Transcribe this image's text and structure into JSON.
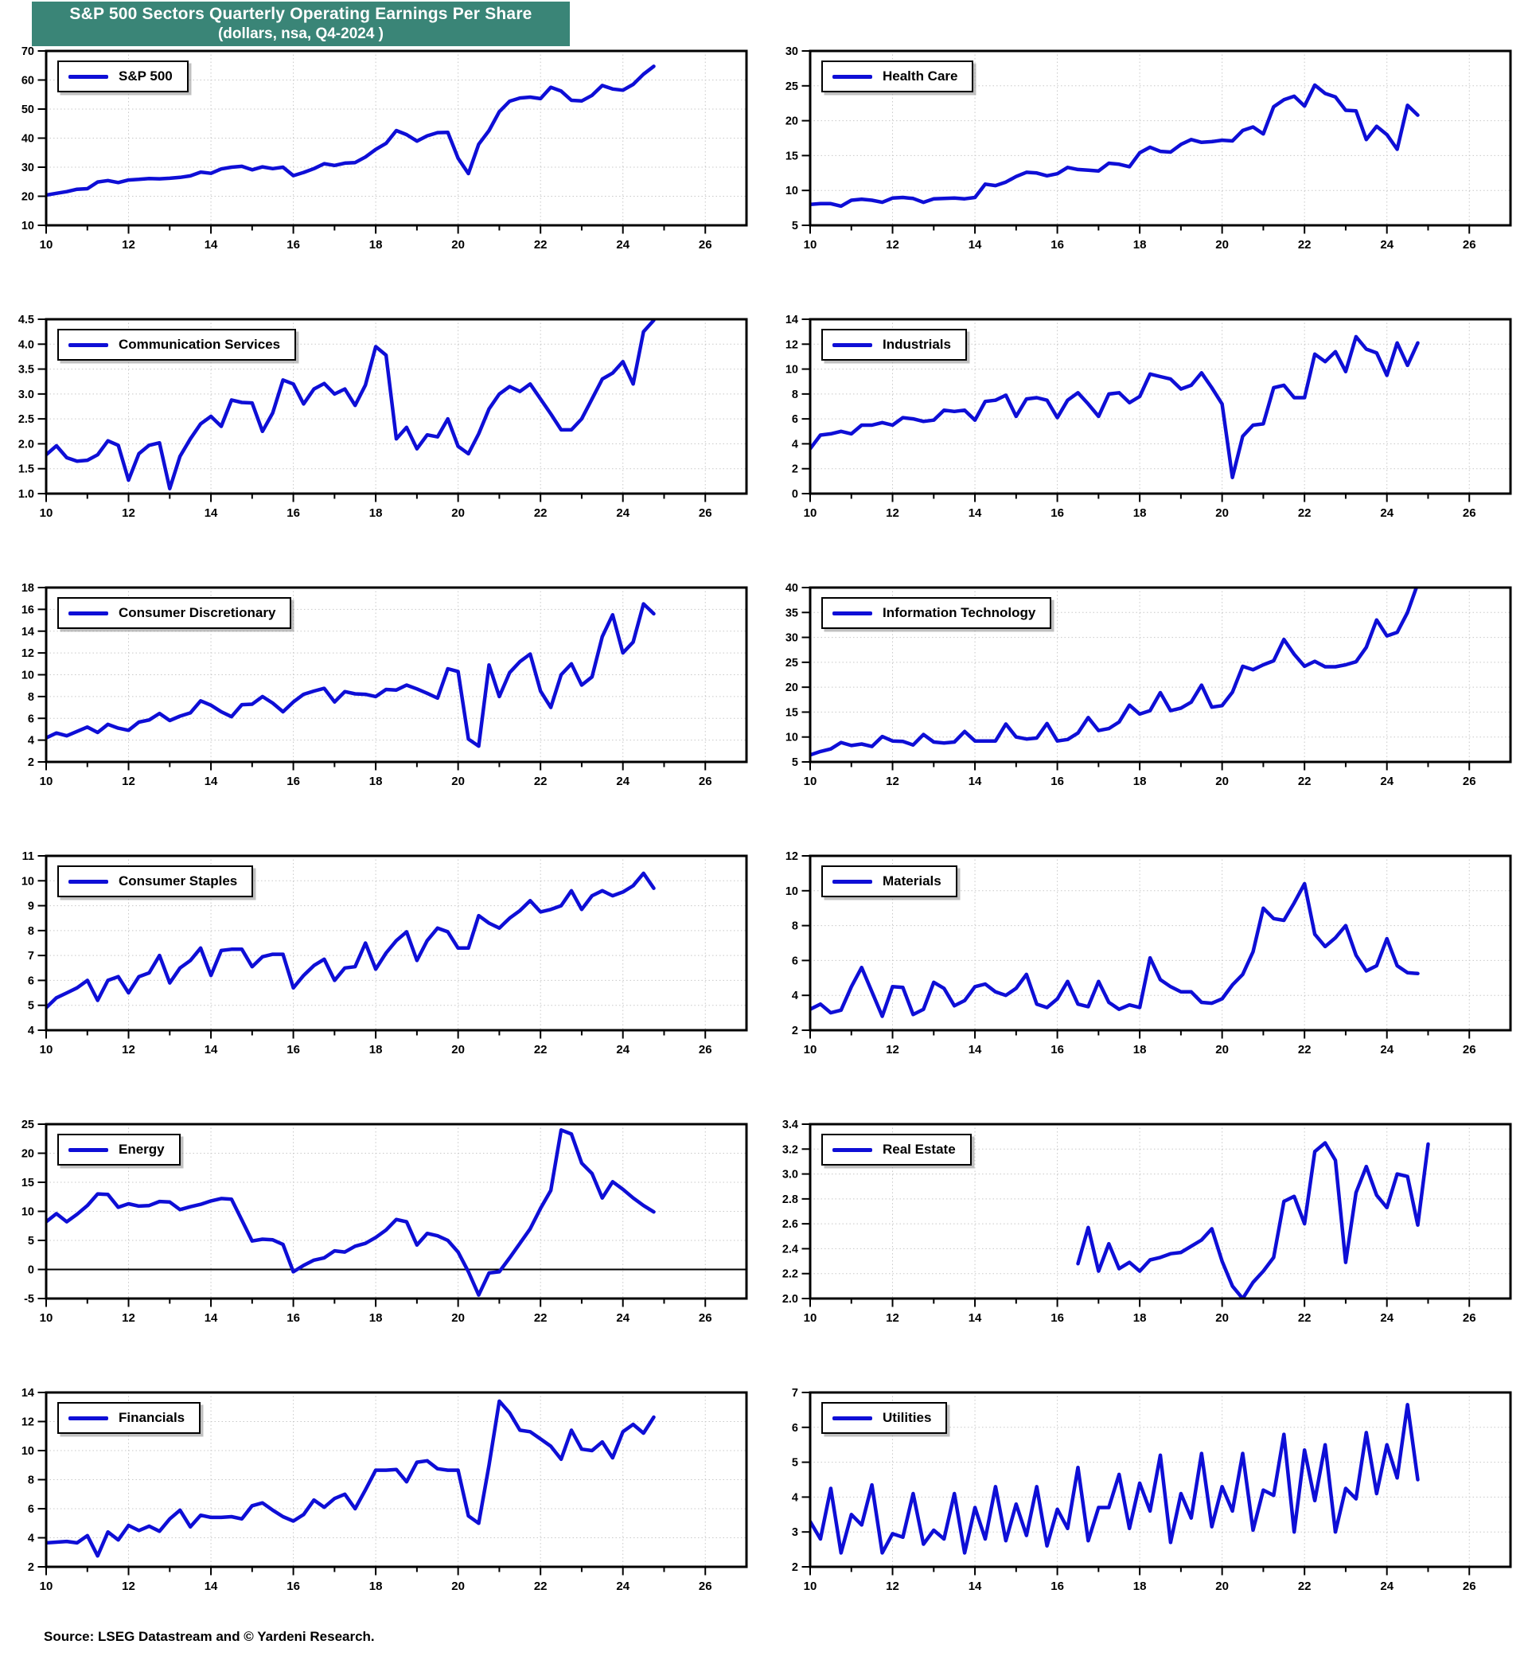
{
  "header": {
    "title_line1": "S&P 500 Sectors Quarterly Operating Earnings Per Share",
    "title_line2": "(dollars, nsa, Q4-2024 )",
    "banner_color": "#3a8577"
  },
  "footer": {
    "source": "Source: LSEG Datastream and © Yardeni Research."
  },
  "colors": {
    "line": "#0e0ed6",
    "grid": "#c8c8c8",
    "frame": "#000000",
    "tick": "#000000"
  },
  "axis": {
    "x_min": 10,
    "x_max": 27,
    "x_major_ticks": [
      10,
      12,
      14,
      16,
      18,
      20,
      22,
      24,
      26
    ],
    "x_minor_step": 1
  },
  "chart_data": [
    {
      "type": "line",
      "name": "S&P 500",
      "slug": "sp500",
      "ylim": [
        10,
        70
      ],
      "yticks": [
        10,
        20,
        30,
        40,
        50,
        60,
        70
      ],
      "ydigits": 0,
      "x_start": 10,
      "x_step": 0.25,
      "zero_line": false,
      "values": [
        20.4,
        21.0,
        21.6,
        22.4,
        22.6,
        24.9,
        25.4,
        24.7,
        25.6,
        25.8,
        26.1,
        26.0,
        26.2,
        26.5,
        27.0,
        28.3,
        27.9,
        29.4,
        30.0,
        30.3,
        29.1,
        30.1,
        29.5,
        30.0,
        27.1,
        28.2,
        29.5,
        31.2,
        30.6,
        31.4,
        31.6,
        33.5,
        36.1,
        38.2,
        42.6,
        41.2,
        39.0,
        40.8,
        41.9,
        42.0,
        33.1,
        27.8,
        37.9,
        42.6,
        49.1,
        52.7,
        53.8,
        54.1,
        53.6,
        57.5,
        56.2,
        53.0,
        52.8,
        54.7,
        58.1,
        56.9,
        56.5,
        58.5,
        62.0,
        64.7
      ]
    },
    {
      "type": "line",
      "name": "Health Care",
      "slug": "health-care",
      "ylim": [
        5,
        30
      ],
      "yticks": [
        5,
        10,
        15,
        20,
        25,
        30
      ],
      "ydigits": 0,
      "x_start": 10,
      "x_step": 0.25,
      "zero_line": false,
      "values": [
        8.0,
        8.1,
        8.1,
        7.75,
        8.6,
        8.75,
        8.6,
        8.3,
        8.9,
        9.0,
        8.85,
        8.3,
        8.8,
        8.85,
        8.9,
        8.8,
        9.0,
        10.9,
        10.7,
        11.2,
        12.0,
        12.6,
        12.5,
        12.1,
        12.4,
        13.3,
        13.0,
        12.9,
        12.8,
        13.9,
        13.75,
        13.4,
        15.4,
        16.2,
        15.6,
        15.5,
        16.6,
        17.3,
        16.9,
        17.0,
        17.2,
        17.1,
        18.6,
        19.1,
        18.1,
        22.0,
        23.0,
        23.5,
        22.1,
        25.1,
        23.9,
        23.4,
        21.5,
        21.4,
        17.3,
        19.2,
        18.0,
        15.9,
        22.2,
        20.8
      ]
    },
    {
      "type": "line",
      "name": "Communication Services",
      "slug": "communication-services",
      "ylim": [
        1.0,
        4.5
      ],
      "yticks": [
        1.0,
        1.5,
        2.0,
        2.5,
        3.0,
        3.5,
        4.0,
        4.5
      ],
      "ydigits": 1,
      "x_start": 10,
      "x_step": 0.25,
      "zero_line": false,
      "values": [
        1.78,
        1.96,
        1.72,
        1.65,
        1.67,
        1.78,
        2.06,
        1.97,
        1.27,
        1.8,
        1.97,
        2.02,
        1.1,
        1.75,
        2.1,
        2.4,
        2.55,
        2.35,
        2.88,
        2.83,
        2.82,
        2.25,
        2.62,
        3.28,
        3.2,
        2.8,
        3.1,
        3.21,
        3.0,
        3.1,
        2.77,
        3.18,
        3.95,
        3.78,
        2.1,
        2.33,
        1.9,
        2.18,
        2.14,
        2.5,
        1.95,
        1.8,
        2.2,
        2.7,
        3.0,
        3.15,
        3.05,
        3.2,
        2.9,
        2.6,
        2.28,
        2.28,
        2.5,
        2.9,
        3.3,
        3.42,
        3.65,
        3.2,
        4.25,
        4.48
      ]
    },
    {
      "type": "line",
      "name": "Industrials",
      "slug": "industrials",
      "ylim": [
        0,
        14
      ],
      "yticks": [
        0,
        2,
        4,
        6,
        8,
        10,
        12,
        14
      ],
      "ydigits": 0,
      "x_start": 10,
      "x_step": 0.25,
      "zero_line": false,
      "values": [
        3.6,
        4.7,
        4.8,
        5.0,
        4.8,
        5.5,
        5.5,
        5.7,
        5.5,
        6.1,
        6.0,
        5.8,
        5.9,
        6.7,
        6.6,
        6.7,
        5.9,
        7.4,
        7.5,
        7.9,
        6.2,
        7.6,
        7.7,
        7.5,
        6.1,
        7.5,
        8.1,
        7.2,
        6.2,
        8.0,
        8.1,
        7.3,
        7.8,
        9.6,
        9.4,
        9.2,
        8.4,
        8.7,
        9.7,
        8.5,
        7.2,
        1.3,
        4.6,
        5.5,
        5.6,
        8.5,
        8.7,
        7.7,
        7.7,
        11.2,
        10.6,
        11.4,
        9.8,
        12.6,
        11.6,
        11.3,
        9.5,
        12.1,
        10.3,
        12.1
      ]
    },
    {
      "type": "line",
      "name": "Consumer Discretionary",
      "slug": "consumer-discretionary",
      "ylim": [
        2,
        18
      ],
      "yticks": [
        2,
        4,
        6,
        8,
        10,
        12,
        14,
        16,
        18
      ],
      "ydigits": 0,
      "x_start": 10,
      "x_step": 0.25,
      "zero_line": false,
      "values": [
        4.2,
        4.65,
        4.4,
        4.8,
        5.2,
        4.7,
        5.45,
        5.1,
        4.9,
        5.65,
        5.85,
        6.45,
        5.8,
        6.2,
        6.5,
        7.6,
        7.2,
        6.6,
        6.15,
        7.25,
        7.3,
        8.0,
        7.4,
        6.6,
        7.5,
        8.2,
        8.5,
        8.75,
        7.5,
        8.45,
        8.25,
        8.2,
        8.0,
        8.65,
        8.6,
        9.05,
        8.7,
        8.3,
        7.85,
        10.55,
        10.3,
        4.1,
        3.45,
        10.9,
        8.0,
        10.2,
        11.2,
        11.9,
        8.5,
        7.0,
        10.0,
        11.0,
        9.05,
        9.8,
        13.5,
        15.5,
        12.0,
        13.0,
        16.5,
        15.6
      ]
    },
    {
      "type": "line",
      "name": "Information Technology",
      "slug": "information-technology",
      "ylim": [
        5,
        40
      ],
      "yticks": [
        5,
        10,
        15,
        20,
        25,
        30,
        35,
        40
      ],
      "ydigits": 0,
      "x_start": 10,
      "x_step": 0.25,
      "zero_line": false,
      "values": [
        6.4,
        7.1,
        7.6,
        8.9,
        8.3,
        8.6,
        8.1,
        10.1,
        9.2,
        9.1,
        8.4,
        10.5,
        9.0,
        8.8,
        9.0,
        11.1,
        9.2,
        9.2,
        9.2,
        12.6,
        10.0,
        9.6,
        9.8,
        12.7,
        9.2,
        9.5,
        10.8,
        13.9,
        11.3,
        11.7,
        13.0,
        16.4,
        14.6,
        15.3,
        18.9,
        15.3,
        15.8,
        17.0,
        20.4,
        16.0,
        16.3,
        19.0,
        24.2,
        23.5,
        24.5,
        25.3,
        29.6,
        26.6,
        24.2,
        25.2,
        24.1,
        24.1,
        24.5,
        25.1,
        28.0,
        33.5,
        30.3,
        31.0,
        35.0,
        40.8
      ]
    },
    {
      "type": "line",
      "name": "Consumer Staples",
      "slug": "consumer-staples",
      "ylim": [
        4,
        11
      ],
      "yticks": [
        4,
        5,
        6,
        7,
        8,
        9,
        10,
        11
      ],
      "ydigits": 0,
      "x_start": 10,
      "x_step": 0.25,
      "zero_line": false,
      "values": [
        4.9,
        5.3,
        5.5,
        5.7,
        6.0,
        5.2,
        6.0,
        6.15,
        5.5,
        6.15,
        6.3,
        7.0,
        5.9,
        6.5,
        6.8,
        7.3,
        6.2,
        7.2,
        7.25,
        7.25,
        6.55,
        6.95,
        7.05,
        7.05,
        5.7,
        6.2,
        6.6,
        6.85,
        6.0,
        6.5,
        6.55,
        7.5,
        6.45,
        7.1,
        7.6,
        7.95,
        6.8,
        7.6,
        8.1,
        7.95,
        7.3,
        7.3,
        8.6,
        8.3,
        8.1,
        8.5,
        8.8,
        9.2,
        8.75,
        8.85,
        9.0,
        9.6,
        8.85,
        9.4,
        9.6,
        9.4,
        9.55,
        9.8,
        10.3,
        9.7
      ]
    },
    {
      "type": "line",
      "name": "Materials",
      "slug": "materials",
      "ylim": [
        2,
        12
      ],
      "yticks": [
        2,
        4,
        6,
        8,
        10,
        12
      ],
      "ydigits": 0,
      "x_start": 10,
      "x_step": 0.25,
      "zero_line": false,
      "values": [
        3.2,
        3.5,
        3.0,
        3.15,
        4.5,
        5.6,
        4.2,
        2.8,
        4.5,
        4.45,
        2.9,
        3.2,
        4.75,
        4.4,
        3.4,
        3.7,
        4.5,
        4.65,
        4.2,
        4.0,
        4.4,
        5.2,
        3.5,
        3.3,
        3.8,
        4.8,
        3.5,
        3.35,
        4.8,
        3.6,
        3.2,
        3.45,
        3.3,
        6.15,
        4.9,
        4.5,
        4.2,
        4.2,
        3.6,
        3.55,
        3.8,
        4.6,
        5.2,
        6.5,
        9.0,
        8.4,
        8.3,
        9.3,
        10.4,
        7.5,
        6.8,
        7.3,
        8.0,
        6.3,
        5.4,
        5.7,
        7.25,
        5.7,
        5.3,
        5.25
      ]
    },
    {
      "type": "line",
      "name": "Energy",
      "slug": "energy",
      "ylim": [
        -5,
        25
      ],
      "yticks": [
        -5,
        0,
        5,
        10,
        15,
        20,
        25
      ],
      "ydigits": 0,
      "x_start": 10,
      "x_step": 0.25,
      "zero_line": true,
      "values": [
        8.2,
        9.6,
        8.2,
        9.5,
        11.0,
        13.0,
        12.9,
        10.7,
        11.3,
        10.9,
        11.0,
        11.7,
        11.6,
        10.3,
        10.8,
        11.2,
        11.8,
        12.2,
        12.1,
        8.5,
        4.9,
        5.2,
        5.1,
        4.3,
        -0.4,
        0.7,
        1.6,
        2.0,
        3.2,
        3.0,
        4.0,
        4.5,
        5.5,
        6.8,
        8.6,
        8.2,
        4.2,
        6.2,
        5.8,
        5.0,
        3.0,
        -0.4,
        -4.4,
        -0.6,
        -0.4,
        2.0,
        4.5,
        7.0,
        10.5,
        13.6,
        24.0,
        23.3,
        18.3,
        16.5,
        12.3,
        15.1,
        13.8,
        12.3,
        11.0,
        9.9
      ]
    },
    {
      "type": "line",
      "name": "Real Estate",
      "slug": "real-estate",
      "ylim": [
        2.0,
        3.4
      ],
      "yticks": [
        2.0,
        2.2,
        2.4,
        2.6,
        2.8,
        3.0,
        3.2,
        3.4
      ],
      "ydigits": 1,
      "x_start": 16.5,
      "x_step": 0.25,
      "zero_line": false,
      "values": [
        2.28,
        2.57,
        2.22,
        2.44,
        2.24,
        2.29,
        2.22,
        2.31,
        2.33,
        2.36,
        2.37,
        2.42,
        2.47,
        2.56,
        2.3,
        2.1,
        2.0,
        2.13,
        2.22,
        2.33,
        2.78,
        2.82,
        2.6,
        3.18,
        3.25,
        3.11,
        2.29,
        2.85,
        3.06,
        2.83,
        2.73,
        3.0,
        2.98,
        2.59,
        3.24
      ]
    },
    {
      "type": "line",
      "name": "Financials",
      "slug": "financials",
      "ylim": [
        2,
        14
      ],
      "yticks": [
        2,
        4,
        6,
        8,
        10,
        12,
        14
      ],
      "ydigits": 0,
      "x_start": 10,
      "x_step": 0.25,
      "zero_line": false,
      "values": [
        3.65,
        3.7,
        3.75,
        3.65,
        4.15,
        2.75,
        4.4,
        3.85,
        4.85,
        4.5,
        4.8,
        4.45,
        5.3,
        5.9,
        4.75,
        5.55,
        5.4,
        5.4,
        5.45,
        5.3,
        6.2,
        6.4,
        5.9,
        5.45,
        5.15,
        5.6,
        6.6,
        6.1,
        6.7,
        7.0,
        6.0,
        7.3,
        8.65,
        8.65,
        8.7,
        7.85,
        9.2,
        9.3,
        8.75,
        8.65,
        8.65,
        5.5,
        5.0,
        9.0,
        13.4,
        12.6,
        11.4,
        11.3,
        10.8,
        10.3,
        9.4,
        11.4,
        10.1,
        10.0,
        10.6,
        9.5,
        11.3,
        11.8,
        11.2,
        12.3
      ]
    },
    {
      "type": "line",
      "name": "Utilities",
      "slug": "utilities",
      "ylim": [
        2,
        7
      ],
      "yticks": [
        2,
        3,
        4,
        5,
        6,
        7
      ],
      "ydigits": 0,
      "x_start": 10,
      "x_step": 0.25,
      "zero_line": false,
      "values": [
        3.3,
        2.8,
        4.25,
        2.4,
        3.5,
        3.2,
        4.35,
        2.4,
        2.95,
        2.85,
        4.1,
        2.65,
        3.05,
        2.8,
        4.1,
        2.4,
        3.7,
        2.8,
        4.3,
        2.75,
        3.8,
        2.9,
        4.3,
        2.6,
        3.65,
        3.1,
        4.85,
        2.75,
        3.7,
        3.7,
        4.65,
        3.1,
        4.4,
        3.6,
        5.2,
        2.7,
        4.1,
        3.4,
        5.25,
        3.15,
        4.3,
        3.6,
        5.25,
        3.05,
        4.2,
        4.05,
        5.8,
        3.0,
        5.35,
        3.9,
        5.5,
        3.0,
        4.25,
        3.95,
        5.85,
        4.1,
        5.5,
        4.55,
        6.65,
        4.5
      ]
    }
  ]
}
